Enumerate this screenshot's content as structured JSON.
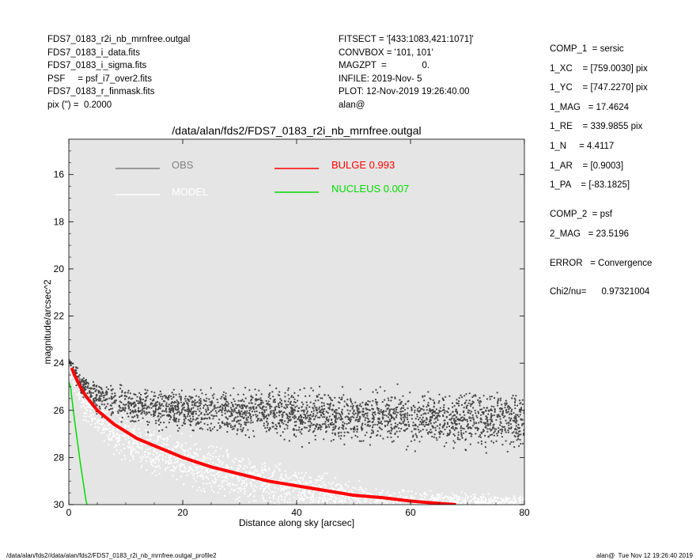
{
  "header_left": [
    "FDS7_0183_r2i_nb_mrnfree.outgal",
    "FDS7_0183_i_data.fits",
    "FDS7_0183_i_sigma.fits",
    "PSF     = psf_i7_over2.fits",
    "FDS7_0183_r_finmask.fits",
    "pix (\") =  0.2000"
  ],
  "header_mid": [
    "FITSECT = '[433:1083,421:1071]'",
    "CONVBOX = '101, 101'",
    "MAGZPT  =              0.",
    "INFILE: 2019-Nov- 5",
    "PLOT: 12-Nov-2019 19:26:40.00",
    "alan@"
  ],
  "header_right_block1": [
    "COMP_1  = sersic",
    "1_XC    = [759.0030] pix",
    "1_YC    = [747.2270] pix",
    "1_MAG   = 17.4624",
    "1_RE    = 339.9855 pix",
    "1_N     = 4.4117",
    "1_AR    = [0.9003]",
    "1_PA    = [-83.1825]"
  ],
  "header_right_block2": [
    "COMP_2  = psf",
    "2_MAG   = 23.5196"
  ],
  "header_right_block3": [
    "ERROR   = Convergence"
  ],
  "header_right_block4": [
    "Chi2/nu=      0.97321004"
  ],
  "footer_left": "/data/alan/fds2//data/alan/fds2/FDS7_0183_r2i_nb_mrnfree.outgal_profile2",
  "footer_right": "alan@  Tue Nov 12 19:26:40 2019",
  "colors": {
    "plot_bg": "#e5e5e5",
    "obs": "#808080",
    "obs_points": "#444444",
    "model_points": "#ffffff",
    "bulge": "#ff0000",
    "nucleus": "#00dd00"
  },
  "chart_data": {
    "type": "scatter",
    "title": "/data/alan/fds2/FDS7_0183_r2i_nb_mrnfree.outgal",
    "xlabel": "Distance along sky [arcsec]",
    "ylabel": "magnitude/arcsec^2",
    "xlim": [
      0,
      80
    ],
    "ylim": [
      30,
      14.5
    ],
    "y_inverted": true,
    "xticks": [
      0,
      20,
      40,
      60,
      80
    ],
    "yticks": [
      16,
      18,
      20,
      22,
      24,
      26,
      28,
      30
    ],
    "grid": false,
    "legend_placement": "top",
    "legend": [
      {
        "label": "OBS",
        "color": "#808080"
      },
      {
        "label": "MODEL",
        "color": "#ffffff"
      },
      {
        "label": "BULGE  0.993",
        "color": "#ff0000"
      },
      {
        "label": "NUCLEUS  0.007",
        "color": "#00dd00"
      }
    ],
    "series": [
      {
        "name": "OBS",
        "kind": "scatter",
        "description_points": "dense cloud of dark points",
        "x": [
          0.2,
          0.5,
          1,
          1.5,
          2,
          3,
          4,
          5,
          6,
          8,
          10,
          12,
          15,
          18,
          20,
          22,
          25,
          28,
          30,
          33,
          35,
          38,
          40,
          43,
          45,
          48,
          50,
          53,
          55,
          58,
          60,
          63,
          65,
          68,
          70,
          73,
          75,
          78,
          80
        ],
        "y": [
          23.9,
          24.1,
          24.4,
          24.6,
          24.9,
          25.1,
          25.2,
          25.4,
          25.5,
          25.6,
          25.7,
          25.8,
          25.9,
          25.9,
          26.0,
          26.0,
          26.0,
          26.1,
          26.1,
          26.1,
          26.1,
          26.2,
          26.2,
          26.2,
          26.2,
          26.3,
          26.3,
          26.3,
          26.3,
          26.3,
          26.4,
          26.4,
          26.4,
          26.4,
          26.4,
          26.4,
          26.4,
          26.5,
          26.5
        ],
        "spread": [
          0.2,
          0.3,
          0.4,
          0.5,
          0.6,
          0.7,
          0.8,
          0.9,
          0.9,
          1.0,
          1.0,
          1.1,
          1.1,
          1.2,
          1.2,
          1.2,
          1.3,
          1.3,
          1.3,
          1.3,
          1.3,
          1.4,
          1.4,
          1.4,
          1.4,
          1.4,
          1.4,
          1.5,
          1.5,
          1.5,
          1.5,
          1.5,
          1.5,
          1.5,
          1.6,
          1.6,
          1.6,
          1.6,
          1.6
        ]
      },
      {
        "name": "MODEL",
        "kind": "scatter",
        "x": [
          0.5,
          1,
          2,
          3,
          4,
          5,
          6,
          8,
          10,
          12,
          15,
          18,
          20,
          25,
          30,
          35,
          40,
          45,
          50,
          55,
          60,
          65,
          70,
          75,
          80
        ],
        "y": [
          24.4,
          24.8,
          25.4,
          25.8,
          26.1,
          26.3,
          26.5,
          26.9,
          27.2,
          27.4,
          27.7,
          27.9,
          28.1,
          28.5,
          28.8,
          29.1,
          29.3,
          29.6,
          29.8,
          30.0,
          30.0,
          30.0,
          30.0,
          30.0,
          30.0
        ],
        "spread": [
          0.5,
          0.7,
          0.9,
          1.0,
          1.1,
          1.2,
          1.2,
          1.3,
          1.3,
          1.4,
          1.4,
          1.4,
          1.4,
          1.4,
          1.4,
          1.3,
          1.2,
          1.1,
          1.0,
          0.9,
          0.8,
          0.7,
          0.6,
          0.6,
          0.6
        ]
      },
      {
        "name": "BULGE  0.993",
        "kind": "line",
        "x": [
          0.5,
          1,
          2,
          3,
          4,
          5,
          6,
          8,
          10,
          12,
          15,
          18,
          20,
          25,
          30,
          35,
          40,
          45,
          50,
          55,
          60,
          65,
          68
        ],
        "y": [
          24.2,
          24.5,
          25.0,
          25.4,
          25.7,
          26.0,
          26.2,
          26.6,
          26.9,
          27.2,
          27.5,
          27.8,
          28.0,
          28.4,
          28.7,
          29.0,
          29.2,
          29.4,
          29.6,
          29.7,
          29.85,
          29.95,
          30.0
        ]
      },
      {
        "name": "NUCLEUS  0.007",
        "kind": "line",
        "x": [
          0,
          0.3,
          0.6,
          1.0,
          1.5,
          2.0,
          2.5,
          3.0,
          3.2
        ],
        "y": [
          24.8,
          25.0,
          25.6,
          26.4,
          27.3,
          28.2,
          29.0,
          29.8,
          30.0
        ]
      }
    ]
  }
}
